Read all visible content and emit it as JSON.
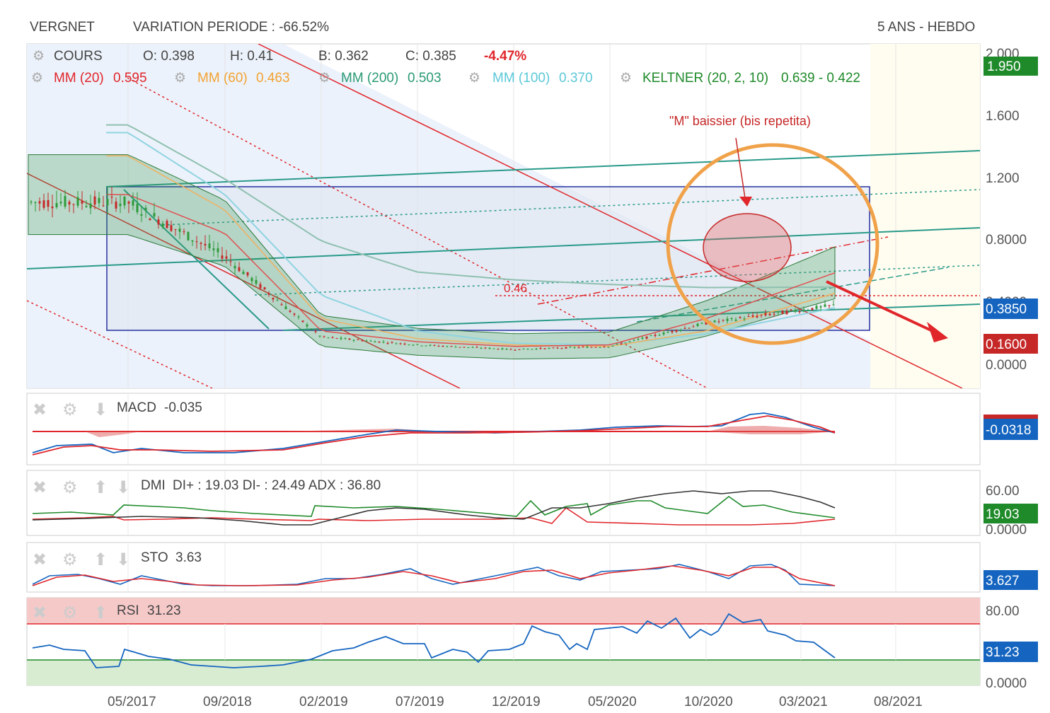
{
  "header": {
    "symbol": "VERGNET",
    "variation": "VARIATION PERIODE : -66.52%",
    "period": "5 ANS - HEBDO"
  },
  "price_legend": {
    "cours_label": "COURS",
    "open": "O: 0.398",
    "high": "H: 0.41",
    "low": "B: 0.362",
    "close": "C: 0.385",
    "change": "-4.47%",
    "mm20_label": "MM (20)",
    "mm20_value": "0.595",
    "mm60_label": "MM (60)",
    "mm60_value": "0.463",
    "mm200_label": "MM (200)",
    "mm200_value": "0.503",
    "mm100_label": "MM (100)",
    "mm100_value": "0.370",
    "keltner_label": "KELTNER (20, 2, 10)",
    "keltner_value": "0.639 - 0.422"
  },
  "annotations": {
    "m_pattern": "\"M\" baissier (bis repetita)",
    "level_label": "0.46"
  },
  "price_axis": {
    "ticks": [
      "2.000",
      "1.600",
      "1.200",
      "0.8000",
      "0.4000",
      "0.0000"
    ],
    "pill_top": "1.950",
    "pill_last": "0.3850",
    "pill_low": "0.1600"
  },
  "macd": {
    "label": "MACD",
    "value": "-0.035",
    "pill": "-0.0318"
  },
  "dmi": {
    "label": "DMI",
    "value": "DI+ : 19.03 DI- : 24.49 ADX : 36.80",
    "ticks": [
      "60.00",
      "0.0000"
    ],
    "pill": "19.03"
  },
  "sto": {
    "label": "STO",
    "value": "3.63",
    "pill": "3.627"
  },
  "rsi": {
    "label": "RSI",
    "value": "31.23",
    "ticks": [
      "80.00",
      "0.0000"
    ],
    "pill": "31.23"
  },
  "x_axis": {
    "labels": [
      "05/2017",
      "09/2018",
      "02/2019",
      "07/2019",
      "12/2019",
      "05/2020",
      "10/2020",
      "03/2021",
      "08/2021"
    ]
  },
  "colors": {
    "mm20": "#e0262b",
    "mm60": "#f2a232",
    "mm200": "#2a9a73",
    "mm100": "#5bc8d8",
    "keltner": "#1f8a2a",
    "change": "#e0262b",
    "pill_green": "#1f8a2a",
    "pill_blue": "#1565c0",
    "pill_red": "#c62828",
    "orange_circle": "#f0a24a",
    "rect": "#2530a0"
  },
  "chart_data": [
    {
      "type": "line",
      "title": "VERGNET",
      "x": [
        "05/2017",
        "09/2018",
        "02/2019",
        "07/2019",
        "12/2019",
        "05/2020",
        "10/2020",
        "03/2021"
      ],
      "series": [
        {
          "name": "COURS",
          "values": [
            1.05,
            0.7,
            0.18,
            0.13,
            0.1,
            0.12,
            0.27,
            0.385
          ]
        },
        {
          "name": "MM (20)",
          "values": [
            1.1,
            0.85,
            0.22,
            0.15,
            0.12,
            0.13,
            0.3,
            0.595
          ]
        },
        {
          "name": "MM (60)",
          "values": [
            1.35,
            1.0,
            0.3,
            0.17,
            0.13,
            0.12,
            0.22,
            0.463
          ]
        },
        {
          "name": "MM (200)",
          "values": [
            1.55,
            1.2,
            0.8,
            0.6,
            0.55,
            0.52,
            0.5,
            0.503
          ]
        },
        {
          "name": "MM (100)",
          "values": [
            1.5,
            1.1,
            0.45,
            0.22,
            0.14,
            0.13,
            0.2,
            0.37
          ]
        }
      ],
      "ylim": [
        0,
        2.0
      ]
    },
    {
      "type": "line",
      "title": "MACD",
      "series": [
        {
          "name": "MACD",
          "values": [
            -0.035
          ]
        }
      ]
    },
    {
      "type": "line",
      "title": "DMI",
      "series": [
        {
          "name": "DI+",
          "values": [
            19.03
          ]
        },
        {
          "name": "DI-",
          "values": [
            24.49
          ]
        },
        {
          "name": "ADX",
          "values": [
            36.8
          ]
        }
      ],
      "ylim": [
        0,
        60
      ]
    },
    {
      "type": "line",
      "title": "STO",
      "series": [
        {
          "name": "STO",
          "values": [
            3.63
          ]
        }
      ]
    },
    {
      "type": "line",
      "title": "RSI",
      "series": [
        {
          "name": "RSI",
          "values": [
            31.23
          ]
        }
      ],
      "ylim": [
        0,
        80
      ]
    }
  ]
}
